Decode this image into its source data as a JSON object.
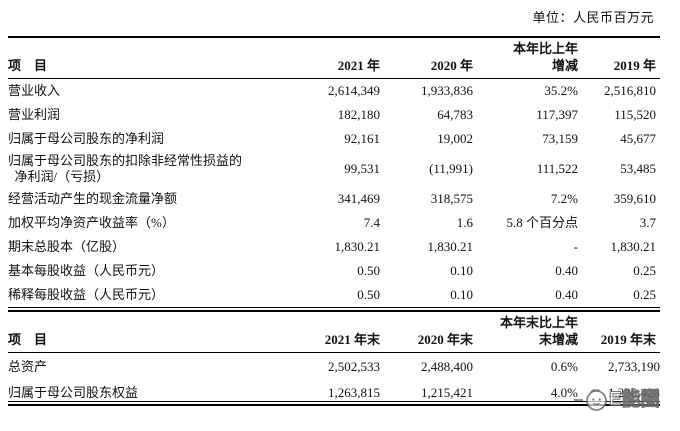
{
  "unit_label": "单位：人民币百万元",
  "colors": {
    "rule": "#000000",
    "text": "#111111",
    "watermark_gray": "#6a6a6a"
  },
  "table1": {
    "header": {
      "item": "项　目",
      "y2021": "2021 年",
      "y2020": "2020 年",
      "change_line1": "本年比上年",
      "change_line2": "增减",
      "y2019": "2019 年"
    },
    "rows": [
      [
        "营业收入",
        "2,614,349",
        "1,933,836",
        "35.2%",
        "2,516,810"
      ],
      [
        "营业利润",
        "182,180",
        "64,783",
        "117,397",
        "115,520"
      ],
      [
        "归属于母公司股东的净利润",
        "92,161",
        "19,002",
        "73,159",
        "45,677"
      ],
      [
        "归属于母公司股东的扣除非经常性损益的\n 净利润/（亏损）",
        "99,531",
        "(11,991)",
        "111,522",
        "53,485"
      ],
      [
        "经营活动产生的现金流量净额",
        "341,469",
        "318,575",
        "7.2%",
        "359,610"
      ],
      [
        "加权平均净资产收益率（%）",
        "7.4",
        "1.6",
        "5.8 个百分点",
        "3.7"
      ],
      [
        "期末总股本（亿股）",
        "1,830.21",
        "1,830.21",
        "-",
        "1,830.21"
      ],
      [
        "基本每股收益（人民币元）",
        "0.50",
        "0.10",
        "0.40",
        "0.25"
      ],
      [
        "稀释每股收益（人民币元）",
        "0.50",
        "0.10",
        "0.40",
        "0.25"
      ]
    ]
  },
  "table2": {
    "header": {
      "item": "项　目",
      "y2021": "2021 年末",
      "y2020": "2020 年末",
      "change_line1": "本年末比上年",
      "change_line2": "末增减",
      "y2019": "2019 年末"
    },
    "rows": [
      [
        "总资产",
        "2,502,533",
        "2,488,400",
        "0.6%",
        "2,733,190"
      ],
      [
        "归属于母公司股东权益",
        "1,263,815",
        "1,215,421",
        "4.0%",
        "1,230,428"
      ]
    ]
  },
  "watermark": {
    "text": "E能圈"
  }
}
